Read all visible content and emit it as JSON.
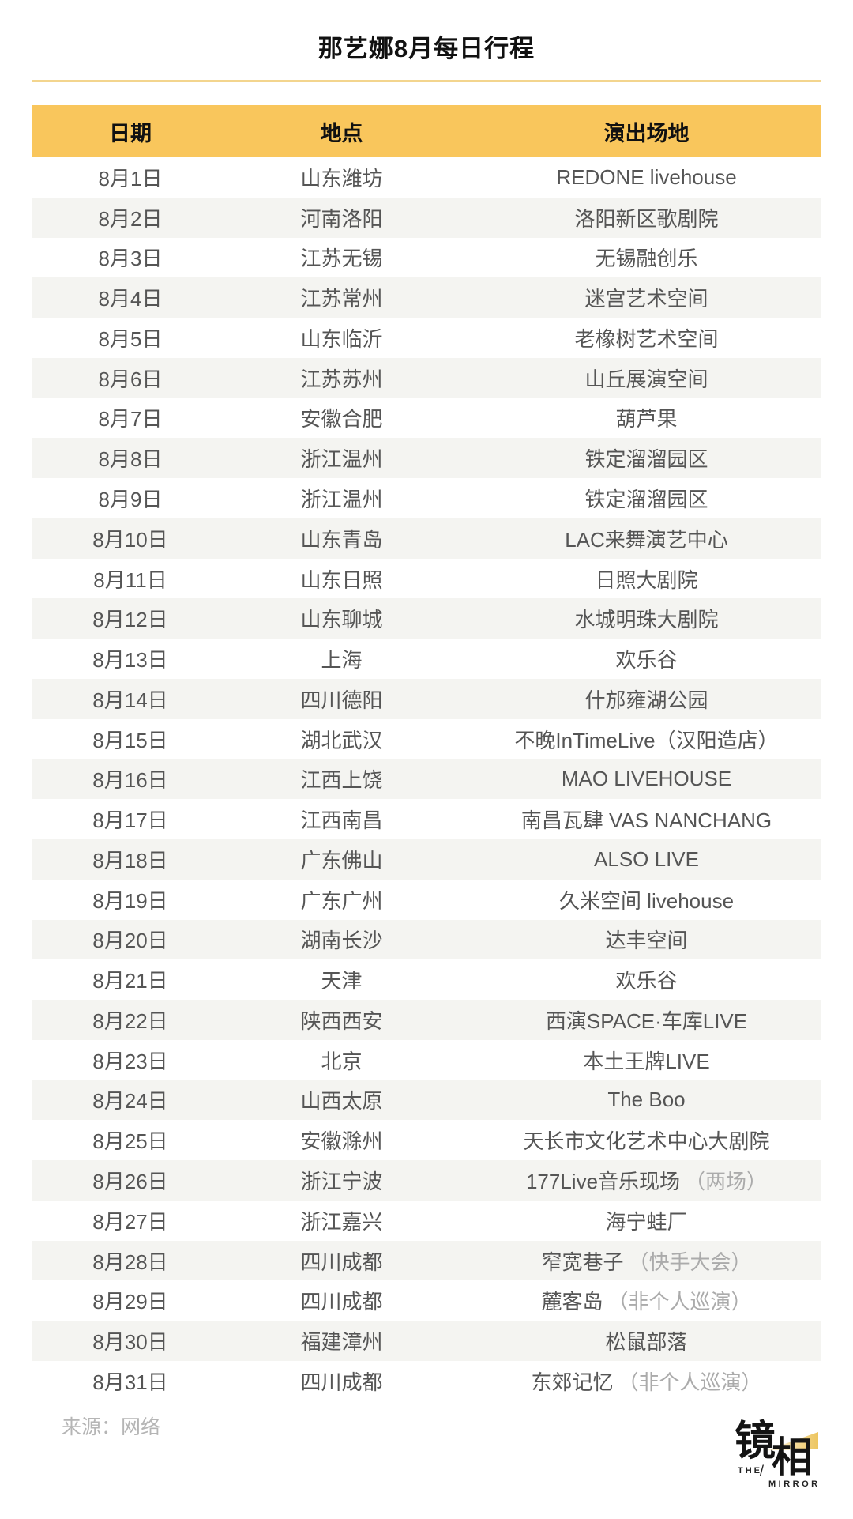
{
  "page": {
    "source": "来源：网络",
    "logo": {
      "char1": "镜",
      "char2": "相",
      "word1": "THE",
      "slash": "/",
      "word2": "MIRROR"
    },
    "colors": {
      "header_bg": "#F9C65C",
      "divider": "#F3D58E",
      "alt_row_bg": "#F4F4F1",
      "body_text": "#555555",
      "note_text": "#ABABAB",
      "source_text": "#B5B5B5",
      "logo_beam": "#EDC55F"
    }
  },
  "chart_data": {
    "type": "table",
    "title": "那艺娜8月每日行程",
    "columns": [
      "日期",
      "地点",
      "演出场地"
    ],
    "rows": [
      {
        "date": "8月1日",
        "location": "山东潍坊",
        "venue": "REDONE livehouse"
      },
      {
        "date": "8月2日",
        "location": "河南洛阳",
        "venue": "洛阳新区歌剧院"
      },
      {
        "date": "8月3日",
        "location": "江苏无锡",
        "venue": "无锡融创乐"
      },
      {
        "date": "8月4日",
        "location": "江苏常州",
        "venue": "迷宫艺术空间"
      },
      {
        "date": "8月5日",
        "location": "山东临沂",
        "venue": "老橡树艺术空间"
      },
      {
        "date": "8月6日",
        "location": "江苏苏州",
        "venue": "山丘展演空间"
      },
      {
        "date": "8月7日",
        "location": "安徽合肥",
        "venue": "葫芦果"
      },
      {
        "date": "8月8日",
        "location": "浙江温州",
        "venue": "铁定溜溜园区"
      },
      {
        "date": "8月9日",
        "location": "浙江温州",
        "venue": "铁定溜溜园区"
      },
      {
        "date": "8月10日",
        "location": "山东青岛",
        "venue": "LAC来舞演艺中心"
      },
      {
        "date": "8月11日",
        "location": "山东日照",
        "venue": "日照大剧院"
      },
      {
        "date": "8月12日",
        "location": "山东聊城",
        "venue": "水城明珠大剧院"
      },
      {
        "date": "8月13日",
        "location": "上海",
        "venue": "欢乐谷"
      },
      {
        "date": "8月14日",
        "location": "四川德阳",
        "venue": "什邡雍湖公园"
      },
      {
        "date": "8月15日",
        "location": "湖北武汉",
        "venue": "不晚InTimeLive（汉阳造店）"
      },
      {
        "date": "8月16日",
        "location": "江西上饶",
        "venue": "MAO LIVEHOUSE"
      },
      {
        "date": "8月17日",
        "location": "江西南昌",
        "venue": "南昌瓦肆 VAS NANCHANG"
      },
      {
        "date": "8月18日",
        "location": "广东佛山",
        "venue": "ALSO LIVE"
      },
      {
        "date": "8月19日",
        "location": "广东广州",
        "venue": "久米空间 livehouse"
      },
      {
        "date": "8月20日",
        "location": "湖南长沙",
        "venue": "达丰空间"
      },
      {
        "date": "8月21日",
        "location": "天津",
        "venue": "欢乐谷"
      },
      {
        "date": "8月22日",
        "location": "陕西西安",
        "venue": "西演SPACE·车库LIVE"
      },
      {
        "date": "8月23日",
        "location": "北京",
        "venue": "本土王牌LIVE"
      },
      {
        "date": "8月24日",
        "location": "山西太原",
        "venue": "The Boo"
      },
      {
        "date": "8月25日",
        "location": "安徽滁州",
        "venue": "天长市文化艺术中心大剧院"
      },
      {
        "date": "8月26日",
        "location": "浙江宁波",
        "venue": "177Live音乐现场",
        "note": "（两场）"
      },
      {
        "date": "8月27日",
        "location": "浙江嘉兴",
        "venue": "海宁蛙厂"
      },
      {
        "date": "8月28日",
        "location": "四川成都",
        "venue": "窄宽巷子",
        "note": "（快手大会）"
      },
      {
        "date": "8月29日",
        "location": "四川成都",
        "venue": "麓客岛",
        "note": "（非个人巡演）"
      },
      {
        "date": "8月30日",
        "location": "福建漳州",
        "venue": "松鼠部落"
      },
      {
        "date": "8月31日",
        "location": "四川成都",
        "venue": "东郊记忆",
        "note": "（非个人巡演）"
      }
    ]
  }
}
